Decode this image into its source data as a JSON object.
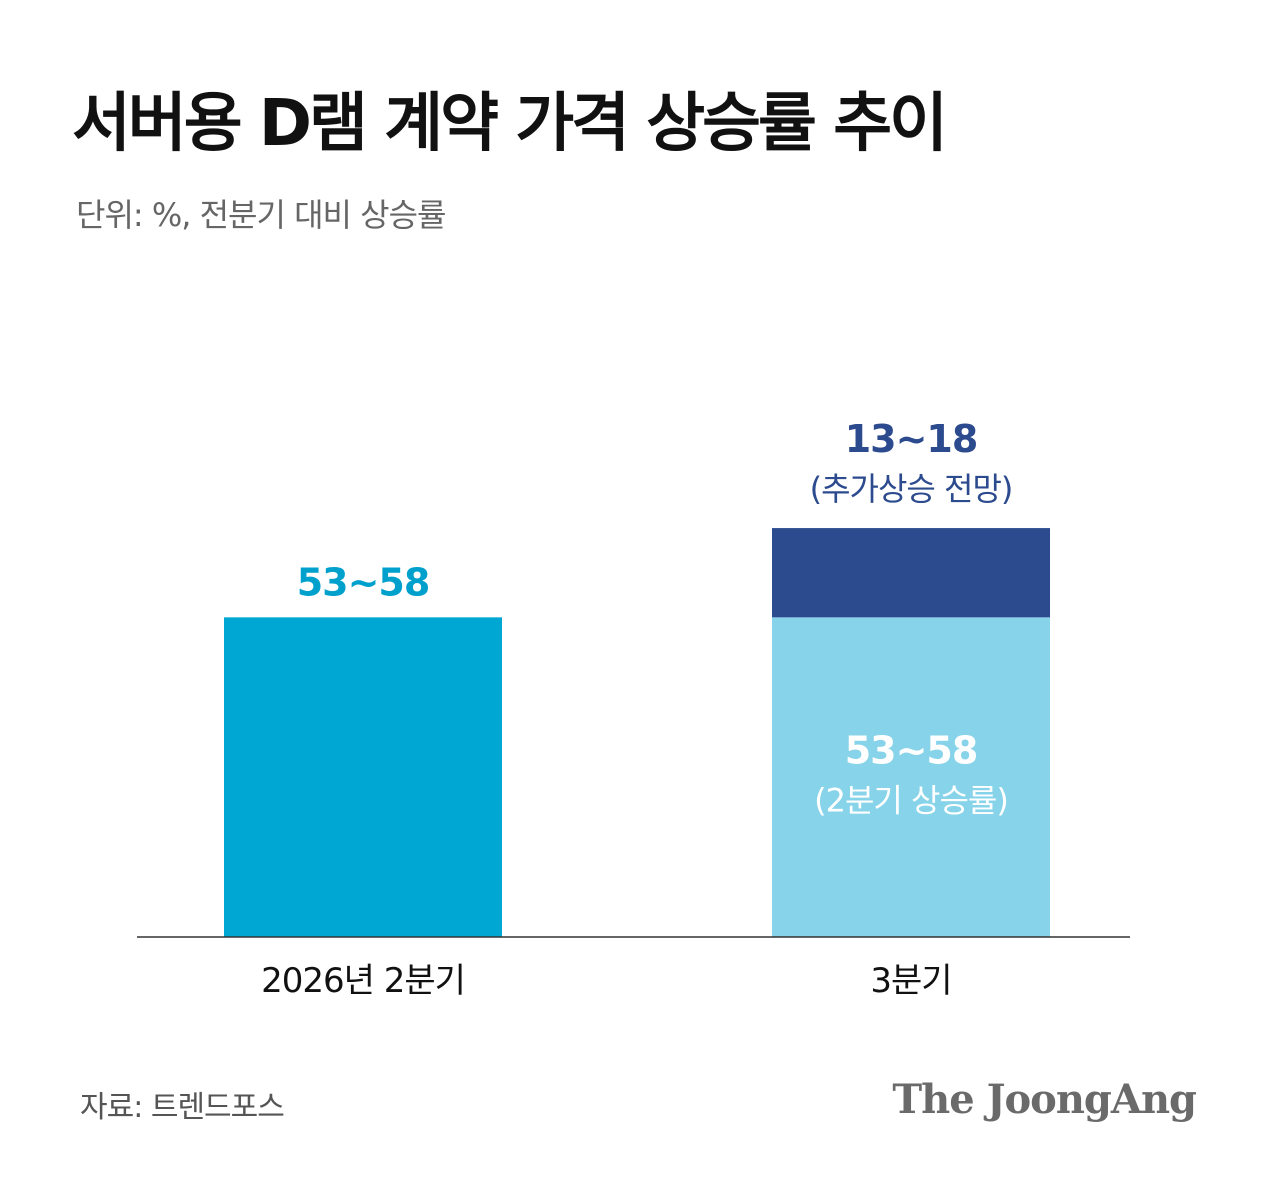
{
  "chart_data": {
    "type": "bar",
    "title": "서버용 D램 계약 가격 상승률 추이",
    "subtitle": "단위: %, 전분기 대비 상승률",
    "categories": [
      "2026년 2분기",
      "3분기"
    ],
    "stacked": true,
    "ylim": [
      0,
      79
    ],
    "grid": false,
    "series": [
      {
        "values": [
          55.5,
          55.5
        ],
        "range_low": [
          53,
          53
        ],
        "range_high": [
          58,
          58
        ],
        "colors": [
          "#00a7d3",
          "#87d3e9"
        ],
        "labels": [
          "53~58",
          "53~58"
        ],
        "sublabels": [
          "",
          "(2분기 상승률)"
        ]
      },
      {
        "values": [
          null,
          15.5
        ],
        "range_low": [
          null,
          13
        ],
        "range_high": [
          null,
          18
        ],
        "colors": [
          "#2c4a8e",
          "#2c4a8e"
        ],
        "labels": [
          "",
          "13~18"
        ],
        "sublabels": [
          "",
          "(추가상승 전망)"
        ]
      }
    ]
  },
  "source": "자료: 트렌드포스",
  "brand": "The JoongAng",
  "colors": {
    "q2_bar": "#00a7d3",
    "q3_base": "#87d3e9",
    "q3_additional": "#2c4a8e",
    "q2_label": "#00a0cc",
    "additional_label": "#2c4a8e",
    "base_inner_label": "#ffffff",
    "axis_line": "#333333"
  }
}
